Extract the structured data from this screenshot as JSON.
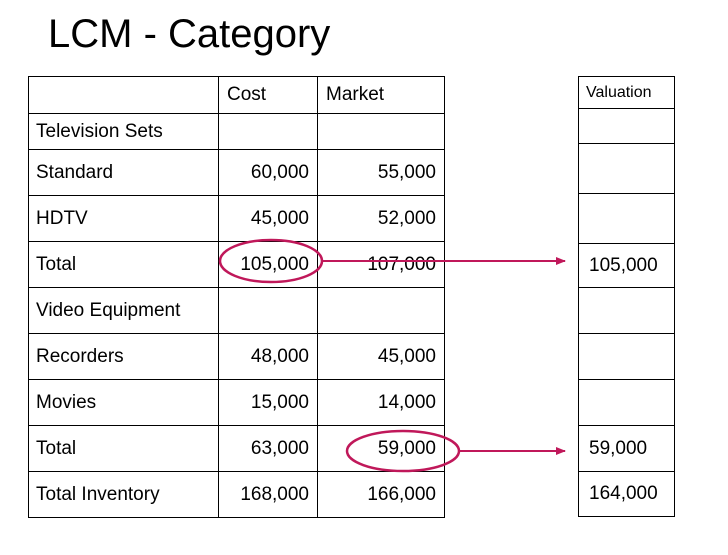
{
  "title": "LCM - Category",
  "headers": {
    "cost": "Cost",
    "market": "Market",
    "valuation": "Valuation"
  },
  "rows": [
    {
      "label": "Television Sets",
      "cost": "",
      "market": "",
      "valuation": ""
    },
    {
      "label": "Standard",
      "cost": "60,000",
      "market": "55,000",
      "valuation": ""
    },
    {
      "label": "HDTV",
      "cost": "45,000",
      "market": "52,000",
      "valuation": ""
    },
    {
      "label": "Total",
      "cost": "105,000",
      "market": "107,000",
      "valuation": "105,000"
    },
    {
      "label": "Video Equipment",
      "cost": "",
      "market": "",
      "valuation": ""
    },
    {
      "label": "Recorders",
      "cost": "48,000",
      "market": "45,000",
      "valuation": ""
    },
    {
      "label": "Movies",
      "cost": "15,000",
      "market": "14,000",
      "valuation": ""
    },
    {
      "label": "Total",
      "cost": "63,000",
      "market": "59,000",
      "valuation": "59,000"
    },
    {
      "label": "Total Inventory",
      "cost": "168,000",
      "market": "166,000",
      "valuation": "164,000"
    }
  ],
  "colors": {
    "accent": "#c0185a"
  }
}
